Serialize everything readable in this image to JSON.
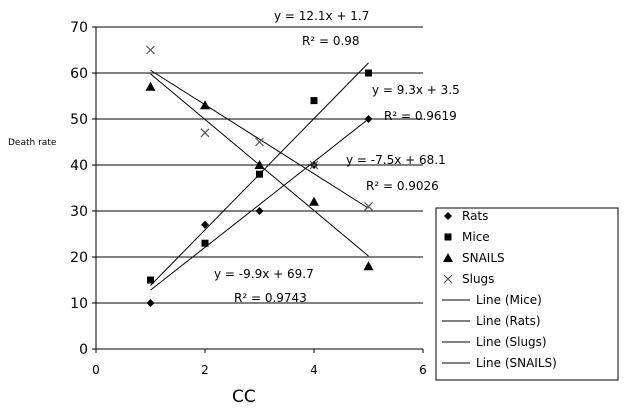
{
  "chart_data": {
    "type": "scatter",
    "title": "",
    "xlabel": "CC",
    "ylabel": "Death rate",
    "xlim": [
      0,
      6
    ],
    "ylim": [
      0,
      70
    ],
    "xticks": [
      "0",
      "2",
      "4",
      "6"
    ],
    "yticks": [
      "0",
      "10",
      "20",
      "30",
      "40",
      "50",
      "60",
      "70"
    ],
    "grid": "horizontal",
    "legend_position": "bottom-right",
    "series": [
      {
        "name": "Rats",
        "marker": "diamond",
        "x": [
          1,
          2,
          3,
          4,
          5
        ],
        "y": [
          10,
          27,
          30,
          40,
          50
        ]
      },
      {
        "name": "Mice",
        "marker": "square",
        "x": [
          1,
          2,
          3,
          4,
          5
        ],
        "y": [
          15,
          23,
          38,
          54,
          60
        ]
      },
      {
        "name": "SNAILS",
        "marker": "triangle",
        "x": [
          1,
          2,
          3,
          4,
          5
        ],
        "y": [
          57,
          53,
          40,
          32,
          18
        ]
      },
      {
        "name": "Slugs",
        "marker": "x",
        "x": [
          1,
          2,
          3,
          4,
          5
        ],
        "y": [
          65,
          47,
          45,
          40,
          31
        ]
      }
    ],
    "trendlines": [
      {
        "name": "Line (Mice)",
        "slope": 12.1,
        "intercept": 1.7,
        "x_range": [
          1,
          5
        ]
      },
      {
        "name": "Line (Rats)",
        "slope": 9.3,
        "intercept": 3.5,
        "x_range": [
          1,
          5
        ]
      },
      {
        "name": "Line (Slugs)",
        "slope": -7.5,
        "intercept": 68.1,
        "x_range": [
          1,
          5
        ]
      },
      {
        "name": "Line (SNAILS)",
        "slope": -9.9,
        "intercept": 69.7,
        "x_range": [
          1,
          5
        ]
      }
    ],
    "annotations": {
      "mice_eq": "y = 12.1x + 1.7",
      "mice_r2": "R² = 0.98",
      "rats_eq": "y = 9.3x + 3.5",
      "rats_r2": "R² = 0.9619",
      "slugs_eq": "y = -7.5x + 68.1",
      "slugs_r2": "R² = 0.9026",
      "snails_eq": "y = -9.9x + 69.7",
      "snails_r2": "R² = 0.9743"
    },
    "legend": [
      "Rats",
      "Mice",
      "SNAILS",
      "Slugs",
      "Line (Mice)",
      "Line (Rats)",
      "Line (Slugs)",
      "Line (SNAILS)"
    ],
    "colors": {
      "markers": "#000000",
      "grid": "#000000",
      "axes": "#000000"
    }
  }
}
